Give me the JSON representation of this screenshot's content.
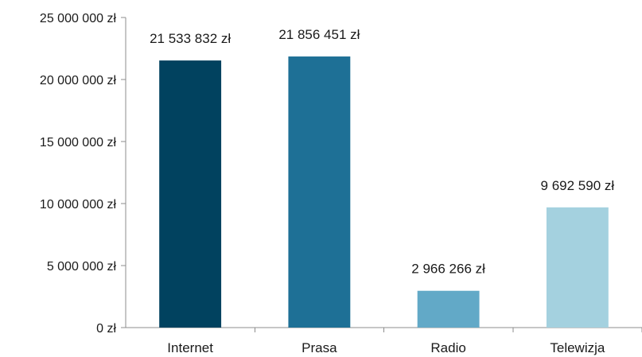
{
  "chart_data": {
    "type": "bar",
    "title": "",
    "xlabel": "",
    "ylabel": "",
    "categories": [
      "Internet",
      "Prasa",
      "Radio",
      "Telewizja"
    ],
    "values": [
      21533832,
      21856451,
      2966266,
      9692590
    ],
    "data_labels": [
      "21 533 832 zł",
      "21 856 451 zł",
      "2 966 266 zł",
      "9 692 590 zł"
    ],
    "colors": [
      "#01425f",
      "#1e7096",
      "#62a9c7",
      "#a4d1df"
    ],
    "ylim": [
      0,
      25000000
    ],
    "y_ticks": [
      0,
      5000000,
      10000000,
      15000000,
      20000000,
      25000000
    ],
    "y_tick_labels": [
      "0 zł",
      "5 000 000 zł",
      "10 000 000 zł",
      "15 000 000 zł",
      "20 000 000 zł",
      "25 000 000 zł"
    ],
    "grid": false,
    "legend": "none"
  }
}
